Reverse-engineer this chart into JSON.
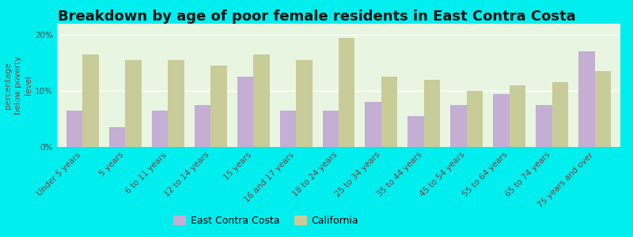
{
  "title": "Breakdown by age of poor female residents in East Contra Costa",
  "categories": [
    "Under 5 years",
    "5 years",
    "6 to 11 years",
    "12 to 14 years",
    "15 years",
    "16 and 17 years",
    "18 to 24 years",
    "25 to 34 years",
    "35 to 44 years",
    "45 to 54 years",
    "55 to 64 years",
    "65 to 74 years",
    "75 years and over"
  ],
  "east_contra_costa": [
    6.5,
    3.5,
    6.5,
    7.5,
    12.5,
    6.5,
    6.5,
    8.0,
    5.5,
    7.5,
    9.5,
    7.5,
    17.0
  ],
  "california": [
    16.5,
    15.5,
    15.5,
    14.5,
    16.5,
    15.5,
    19.5,
    12.5,
    12.0,
    10.0,
    11.0,
    11.5,
    13.5
  ],
  "ecc_color": "#c4aed4",
  "ca_color": "#c8cc99",
  "outer_bg_color": "#00eeee",
  "plot_bg_start": "#e8f5e8",
  "plot_bg_end": "#f5fff5",
  "ylabel": "percentage\nbelow poverty\nlevel",
  "ylim": [
    0,
    22
  ],
  "yticks": [
    0,
    10,
    20
  ],
  "ytick_labels": [
    "0%",
    "10%",
    "20%"
  ],
  "bar_width": 0.38,
  "title_fontsize": 13,
  "axis_label_fontsize": 7.5,
  "tick_fontsize": 7.5,
  "legend_fontsize": 9,
  "xtick_color": "#7a4040",
  "ytick_color": "#444444"
}
